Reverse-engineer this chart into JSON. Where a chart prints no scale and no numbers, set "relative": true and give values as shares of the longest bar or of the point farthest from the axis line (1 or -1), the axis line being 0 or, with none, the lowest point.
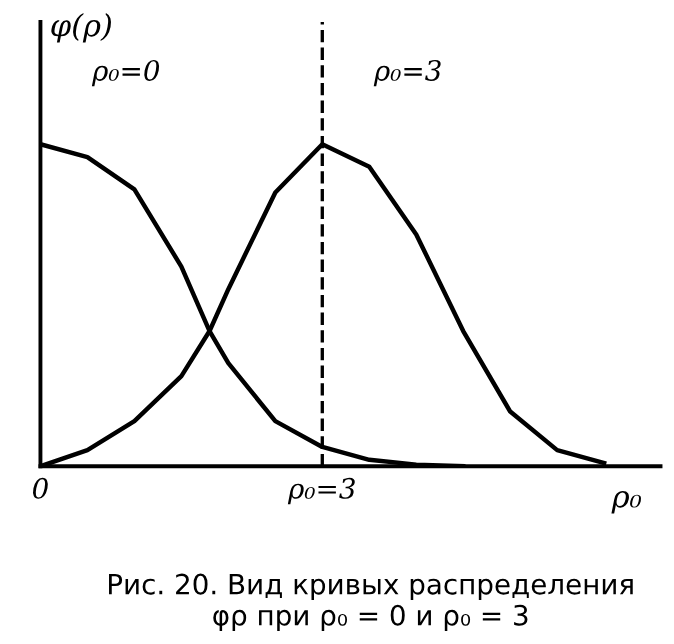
{
  "chart_data": {
    "type": "line",
    "relative": true,
    "ylabel": "φ(ρ)",
    "xlabel": "ρ₀",
    "xlim": [
      0,
      6.6
    ],
    "xticks": [
      {
        "value": 0,
        "label": "0"
      },
      {
        "value": 3,
        "label": "ρ₀=3"
      }
    ],
    "series": [
      {
        "name": "ρ₀=0",
        "color": "#000000",
        "x": [
          0,
          0.5,
          1,
          1.5,
          1.8,
          2,
          2.5,
          3,
          3.5,
          4,
          4.5
        ],
        "values": [
          1.0,
          0.96,
          0.86,
          0.62,
          0.42,
          0.32,
          0.14,
          0.06,
          0.02,
          0.005,
          0
        ]
      },
      {
        "name": "ρ₀=3",
        "color": "#000000",
        "x": [
          0,
          0.5,
          1,
          1.5,
          1.8,
          2,
          2.5,
          3,
          3.5,
          4,
          4.5,
          5,
          5.5,
          6
        ],
        "values": [
          0,
          0.05,
          0.14,
          0.28,
          0.42,
          0.55,
          0.85,
          1.0,
          0.93,
          0.72,
          0.42,
          0.17,
          0.05,
          0.01
        ]
      }
    ],
    "ref_lines": [
      {
        "axis": "x",
        "value": 3,
        "line_style": "dashed",
        "color": "#000000"
      }
    ],
    "grid": false,
    "legend": false,
    "line_style": "solid",
    "marker": "none",
    "annotations": [
      "Рис. 20. Вид кривых распределения\nφρ при ρ₀ = 0 и ρ₀ = 3"
    ]
  }
}
